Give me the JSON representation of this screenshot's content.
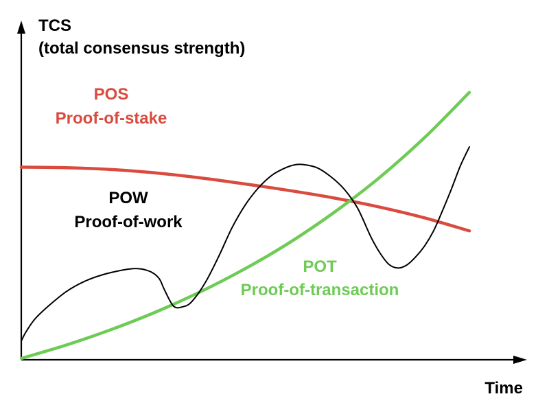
{
  "chart_data": {
    "type": "line",
    "title": "",
    "xlabel": "Time",
    "ylabel": "TCS",
    "ylabel_sub": "(total consensus strength)",
    "xlim": [
      0,
      100
    ],
    "ylim": [
      0,
      100
    ],
    "grid": false,
    "legend": "none",
    "series": [
      {
        "name": "POS",
        "subtitle": "Proof-of-stake",
        "color": "#d94b3f",
        "x": [
          0,
          10,
          20,
          30,
          40,
          50,
          60,
          70,
          80,
          90,
          100
        ],
        "y": [
          66,
          65.8,
          65.2,
          64,
          62.3,
          60.2,
          57.9,
          55.3,
          52.2,
          48.5,
          44
        ]
      },
      {
        "name": "POW",
        "subtitle": "Proof-of-work",
        "color": "#000000",
        "x": [
          0,
          1,
          3,
          6,
          10,
          14,
          18,
          22,
          25,
          27,
          28,
          29,
          30,
          31,
          32,
          34,
          36,
          38,
          41,
          44,
          47,
          50,
          53,
          56,
          59,
          61,
          63,
          66,
          69,
          72,
          75,
          78,
          80,
          82,
          84,
          86,
          88,
          90,
          92,
          94,
          96,
          98,
          100
        ],
        "y": [
          6,
          9,
          13.5,
          18,
          23,
          26.5,
          28.8,
          30.3,
          31,
          30.8,
          30.4,
          29.8,
          28.8,
          27,
          23.5,
          18,
          17.8,
          19.5,
          26,
          35,
          45,
          53,
          59,
          63.3,
          65.8,
          66.8,
          66.9,
          65.8,
          62.8,
          58.5,
          52,
          42,
          36.5,
          32.5,
          31.2,
          32.2,
          35,
          38.8,
          44,
          51,
          58.5,
          66.5,
          73
        ]
      },
      {
        "name": "POT",
        "subtitle": "Proof-of-transaction",
        "color": "#6ecb55",
        "x": [
          0,
          10,
          20,
          30,
          40,
          50,
          60,
          70,
          80,
          90,
          100
        ],
        "y": [
          0,
          4.6,
          9.9,
          16,
          23,
          31,
          40.1,
          50.6,
          62.5,
          76.2,
          91.8
        ]
      }
    ]
  }
}
